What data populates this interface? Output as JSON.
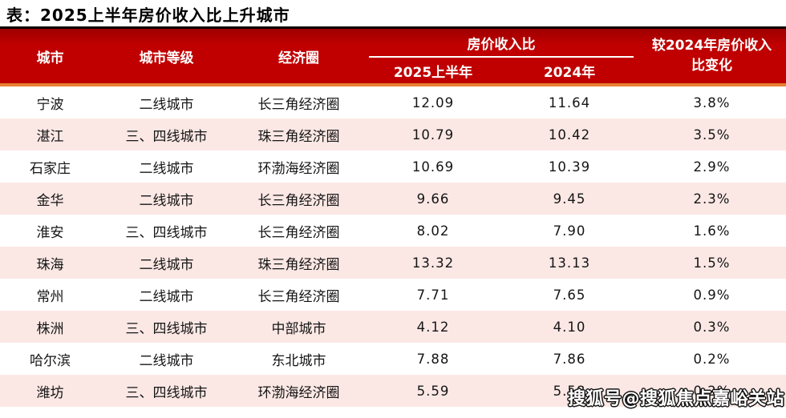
{
  "page": {
    "title": "表：2025上半年房价收入比上升城市",
    "watermark": "搜狐号@搜狐焦点嘉峪关站"
  },
  "colors": {
    "header_bg": "#c00000",
    "header_top_border": "#0a0000",
    "accent_orange": "#e88032",
    "row_alt_bg": "#fbe8e5",
    "header_text": "#ffffff",
    "body_text": "#141414"
  },
  "table": {
    "headers": {
      "city": "城市",
      "tier": "城市等级",
      "region": "经济圈",
      "group": "房价收入比",
      "sub_2025": "2025上半年",
      "sub_2024": "2024年",
      "change_line1": "较2024年房价收入",
      "change_line2": "比变化"
    },
    "rows": [
      {
        "city": "宁波",
        "tier": "二线城市",
        "region": "长三角经济圈",
        "h1_2025": "12.09",
        "y2024": "11.64",
        "change": "3.8%"
      },
      {
        "city": "湛江",
        "tier": "三、四线城市",
        "region": "珠三角经济圈",
        "h1_2025": "10.79",
        "y2024": "10.42",
        "change": "3.5%"
      },
      {
        "city": "石家庄",
        "tier": "二线城市",
        "region": "环渤海经济圈",
        "h1_2025": "10.69",
        "y2024": "10.39",
        "change": "2.9%"
      },
      {
        "city": "金华",
        "tier": "二线城市",
        "region": "长三角经济圈",
        "h1_2025": "9.66",
        "y2024": "9.45",
        "change": "2.3%"
      },
      {
        "city": "淮安",
        "tier": "三、四线城市",
        "region": "长三角经济圈",
        "h1_2025": "8.02",
        "y2024": "7.90",
        "change": "1.6%"
      },
      {
        "city": "珠海",
        "tier": "二线城市",
        "region": "珠三角经济圈",
        "h1_2025": "13.32",
        "y2024": "13.13",
        "change": "1.5%"
      },
      {
        "city": "常州",
        "tier": "二线城市",
        "region": "长三角经济圈",
        "h1_2025": "7.71",
        "y2024": "7.65",
        "change": "0.9%"
      },
      {
        "city": "株洲",
        "tier": "三、四线城市",
        "region": "中部城市",
        "h1_2025": "4.12",
        "y2024": "4.10",
        "change": "0.3%"
      },
      {
        "city": "哈尔滨",
        "tier": "二线城市",
        "region": "东北城市",
        "h1_2025": "7.88",
        "y2024": "7.86",
        "change": "0.2%"
      },
      {
        "city": "潍坊",
        "tier": "三、四线城市",
        "region": "环渤海经济圈",
        "h1_2025": "5.59",
        "y2024": "5.58",
        "change": "0.2%"
      }
    ]
  },
  "chart_data": {
    "type": "table",
    "title": "表：2025上半年房价收入比上升城市",
    "columns": [
      "城市",
      "城市等级",
      "经济圈",
      "房价收入比 2025上半年",
      "房价收入比 2024年",
      "较2024年房价收入比变化"
    ],
    "rows": [
      [
        "宁波",
        "二线城市",
        "长三角经济圈",
        12.09,
        11.64,
        "3.8%"
      ],
      [
        "湛江",
        "三、四线城市",
        "珠三角经济圈",
        10.79,
        10.42,
        "3.5%"
      ],
      [
        "石家庄",
        "二线城市",
        "环渤海经济圈",
        10.69,
        10.39,
        "2.9%"
      ],
      [
        "金华",
        "二线城市",
        "长三角经济圈",
        9.66,
        9.45,
        "2.3%"
      ],
      [
        "淮安",
        "三、四线城市",
        "长三角经济圈",
        8.02,
        7.9,
        "1.6%"
      ],
      [
        "珠海",
        "二线城市",
        "珠三角经济圈",
        13.32,
        13.13,
        "1.5%"
      ],
      [
        "常州",
        "二线城市",
        "长三角经济圈",
        7.71,
        7.65,
        "0.9%"
      ],
      [
        "株洲",
        "三、四线城市",
        "中部城市",
        4.12,
        4.1,
        "0.3%"
      ],
      [
        "哈尔滨",
        "二线城市",
        "东北城市",
        7.88,
        7.86,
        "0.2%"
      ],
      [
        "潍坊",
        "三、四线城市",
        "环渤海经济圈",
        5.59,
        5.58,
        "0.2%"
      ]
    ],
    "legend_position": "none",
    "grid": false
  }
}
